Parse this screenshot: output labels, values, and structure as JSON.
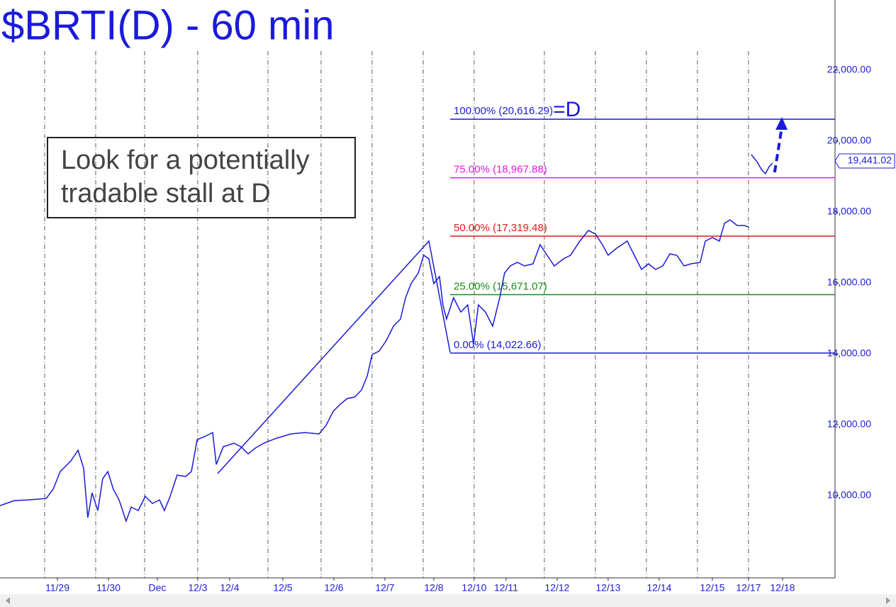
{
  "chart_data": {
    "type": "line",
    "title": "$BRTI(D) - 60 min",
    "annotation": [
      "Look for a potentially",
      "tradable stall at D"
    ],
    "color": "#1a1adc",
    "xlim": [
      0,
      392.7
    ],
    "ylim": [
      7680,
      23980
    ],
    "yticks": [
      {
        "value": 10000,
        "label": "10,000.00"
      },
      {
        "value": 12000,
        "label": "12,000.00"
      },
      {
        "value": 14000,
        "label": "14,000.00"
      },
      {
        "value": 16000,
        "label": "16,000.00"
      },
      {
        "value": 18000,
        "label": "18,000.00"
      },
      {
        "value": 20000,
        "label": "20,000.00"
      },
      {
        "value": 22000,
        "label": "22,000.00"
      }
    ],
    "xticks": [
      {
        "value": 27,
        "label": "11/29"
      },
      {
        "value": 51,
        "label": "11/30"
      },
      {
        "value": 74,
        "label": "Dec"
      },
      {
        "value": 93,
        "label": "12/3"
      },
      {
        "value": 108,
        "label": "12/4"
      },
      {
        "value": 133,
        "label": "12/5"
      },
      {
        "value": 157,
        "label": "12/6"
      },
      {
        "value": 181,
        "label": "12/7"
      },
      {
        "value": 204,
        "label": "12/8"
      },
      {
        "value": 223,
        "label": "12/10"
      },
      {
        "value": 238,
        "label": "12/11"
      },
      {
        "value": 262,
        "label": "12/12"
      },
      {
        "value": 286,
        "label": "12/13"
      },
      {
        "value": 310,
        "label": "12/14"
      },
      {
        "value": 335,
        "label": "12/15"
      },
      {
        "value": 352,
        "label": "12/17"
      },
      {
        "value": 368,
        "label": "12/18"
      }
    ],
    "session_lines": [
      21,
      45,
      68,
      93,
      126,
      151,
      175,
      199,
      223,
      256,
      280,
      304,
      328,
      352
    ],
    "last_price": {
      "value": 19441.02,
      "label": "19,441.02"
    },
    "fib_start_x": 211.7,
    "fib_levels": [
      {
        "label": "100.00% (20,616.29)",
        "value": 20616.29,
        "color": "#1a1adc"
      },
      {
        "label": "75.00% (18,967.88)",
        "value": 18967.88,
        "color": "#e619e6"
      },
      {
        "label": "50.00% (17,319.48)",
        "value": 17319.48,
        "color": "#e61919"
      },
      {
        "label": "25.00% (15,671.07)",
        "value": 15671.07,
        "color": "#1a8c1a"
      },
      {
        "label": "0.00% (14,022.66)",
        "value": 14022.66,
        "color": "#1a1adc"
      }
    ],
    "target_label": "=D",
    "pattern": {
      "x": [
        102.3,
        201.7,
        211.7
      ],
      "y": [
        10620,
        17180,
        14040
      ]
    },
    "projection": {
      "x": [
        364.3,
        367.7
      ],
      "y": [
        19120,
        20680
      ]
    },
    "series": [
      {
        "name": "BRTI",
        "color": "#1a1adc",
        "x": [
          0,
          6.7,
          13.3,
          21.7,
          25,
          28.3,
          33.3,
          36.7,
          39.3,
          41.3,
          43.3,
          46,
          48.3,
          50.7,
          53.3,
          56,
          59.3,
          61.7,
          65,
          68.3,
          71.7,
          75,
          77.3,
          80,
          83.3,
          87.3,
          90,
          92.7,
          96.7,
          100,
          101.7,
          105,
          110,
          113.3,
          116.7,
          120,
          124,
          130,
          136.7,
          143.3,
          150,
          153.3,
          156.7,
          160,
          163.3,
          166.7,
          170,
          172.7,
          175,
          178.3,
          181.7,
          185,
          188.3,
          190.7,
          193.3,
          196.7,
          199.3,
          201.7,
          204,
          206.7,
          208.3,
          210,
          213.3,
          216.7,
          220,
          222.7,
          225,
          228.3,
          231.7,
          235,
          237.3,
          240,
          243.3,
          246.7,
          250.7,
          254,
          257.3,
          260.7,
          265,
          268.3,
          272.7,
          276.7,
          280,
          283.3,
          286,
          290,
          295,
          298.3,
          301.7,
          305,
          308.3,
          311.7,
          315,
          318.3,
          321.7,
          325,
          329.3,
          331.7,
          335,
          338.3,
          340.7,
          343.3,
          346.7,
          350,
          352,
          352.7,
          353.3,
          356,
          358.3,
          360,
          361.7,
          363.3
        ],
        "values": [
          9720,
          9860,
          9880,
          9920,
          10180,
          10680,
          10980,
          11280,
          10780,
          9380,
          10080,
          9580,
          10480,
          10680,
          10180,
          9880,
          9280,
          9680,
          9580,
          9980,
          9780,
          9880,
          9580,
          9980,
          10580,
          10540,
          10680,
          11580,
          11680,
          11780,
          10880,
          11380,
          11480,
          11380,
          11180,
          11340,
          11480,
          11620,
          11740,
          11780,
          11740,
          11980,
          12380,
          12580,
          12740,
          12780,
          12980,
          13380,
          13980,
          14080,
          14380,
          14780,
          14980,
          15580,
          15980,
          16280,
          16780,
          16680,
          15980,
          16180,
          15380,
          14980,
          15580,
          15180,
          15380,
          14280,
          15380,
          15180,
          14780,
          15580,
          16280,
          16480,
          16580,
          16480,
          16540,
          17080,
          16780,
          16480,
          16680,
          16780,
          17180,
          17480,
          17380,
          17080,
          16780,
          16980,
          17180,
          16780,
          16380,
          16540,
          16380,
          16480,
          16820,
          16780,
          16480,
          16540,
          16580,
          17180,
          17280,
          17180,
          17680,
          17780,
          17620,
          17620,
          17580,
          null,
          19620,
          19420,
          19180,
          19080,
          19280,
          19380
        ]
      }
    ]
  }
}
